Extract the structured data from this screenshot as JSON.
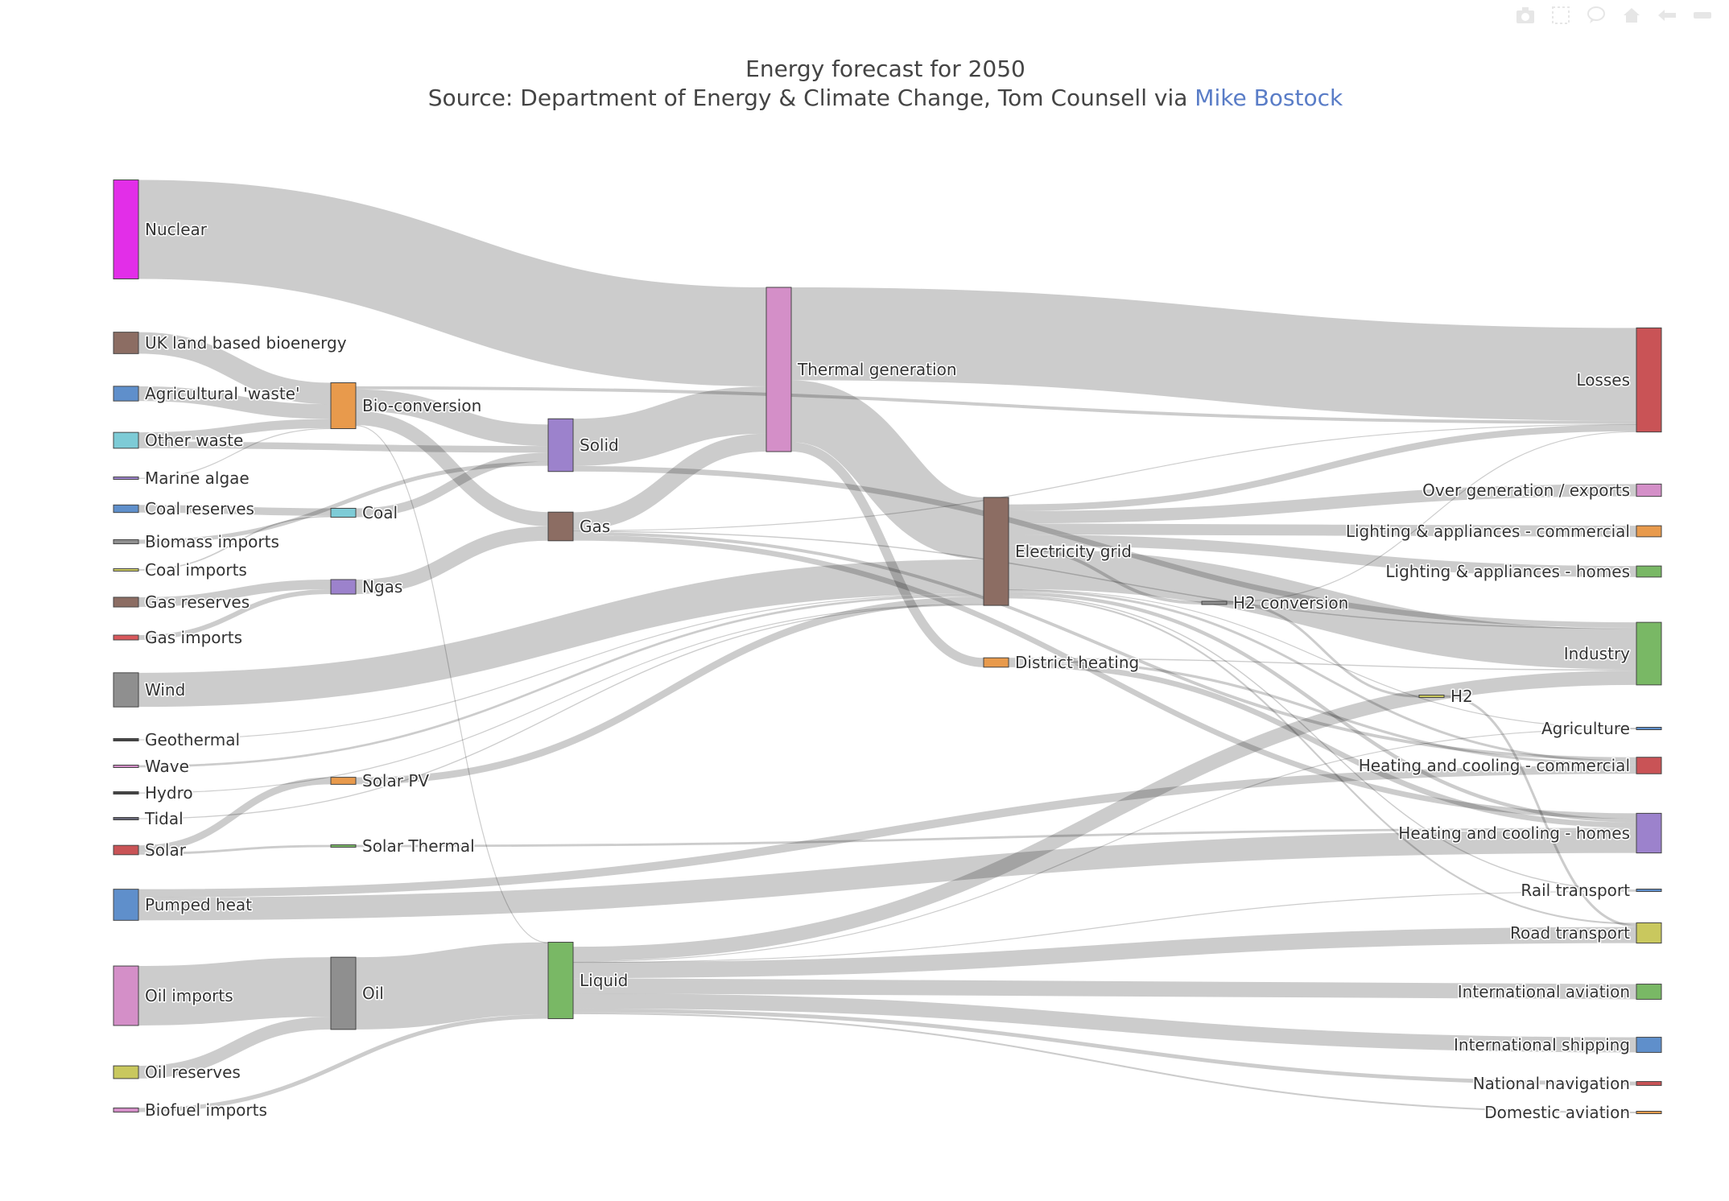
{
  "title": {
    "line1": "Energy forecast for 2050",
    "line2_prefix": "Source: Department of Energy & Climate Change, Tom Counsell via ",
    "link_text": "Mike Bostock"
  },
  "modebar": [
    "camera-icon",
    "box-select-icon",
    "comment-icon",
    "home-icon",
    "arrow-left-icon",
    "bar-icon"
  ],
  "chart_data": {
    "type": "sankey",
    "title": "Energy forecast for 2050",
    "nodes": [
      {
        "id": "nuclear",
        "label": "Nuclear",
        "color": "#e22ee8"
      },
      {
        "id": "uk_bio",
        "label": "UK land based bioenergy",
        "color": "#8c6d63"
      },
      {
        "id": "agri",
        "label": "Agricultural 'waste'",
        "color": "#5f8fcb"
      },
      {
        "id": "other_waste",
        "label": "Other waste",
        "color": "#7dcbd6"
      },
      {
        "id": "algae",
        "label": "Marine algae",
        "color": "#9c82cc"
      },
      {
        "id": "coal_res",
        "label": "Coal reserves",
        "color": "#5f8fcb"
      },
      {
        "id": "bio_imp",
        "label": "Biomass imports",
        "color": "#8f8f8f"
      },
      {
        "id": "coal_imp",
        "label": "Coal imports",
        "color": "#c9c85e"
      },
      {
        "id": "gas_res",
        "label": "Gas reserves",
        "color": "#8c6d63"
      },
      {
        "id": "gas_imp",
        "label": "Gas imports",
        "color": "#d9585c"
      },
      {
        "id": "wind",
        "label": "Wind",
        "color": "#8f8f8f"
      },
      {
        "id": "geo",
        "label": "Geothermal",
        "color": "#444444"
      },
      {
        "id": "wave",
        "label": "Wave",
        "color": "#d48fc8"
      },
      {
        "id": "hydro",
        "label": "Hydro",
        "color": "#444444"
      },
      {
        "id": "tidal",
        "label": "Tidal",
        "color": "#666677"
      },
      {
        "id": "solar",
        "label": "Solar",
        "color": "#c95356"
      },
      {
        "id": "pumped",
        "label": "Pumped heat",
        "color": "#5f8fcb"
      },
      {
        "id": "oil_imp",
        "label": "Oil imports",
        "color": "#d48fc8"
      },
      {
        "id": "oil_res",
        "label": "Oil reserves",
        "color": "#c9c85e"
      },
      {
        "id": "biofuel",
        "label": "Biofuel imports",
        "color": "#d48fc8"
      },
      {
        "id": "bioconv",
        "label": "Bio-conversion",
        "color": "#e89a4c"
      },
      {
        "id": "coal",
        "label": "Coal",
        "color": "#7dcbd6"
      },
      {
        "id": "ngas",
        "label": "Ngas",
        "color": "#9c82cc"
      },
      {
        "id": "solarpv",
        "label": "Solar PV",
        "color": "#e89a4c"
      },
      {
        "id": "solarth",
        "label": "Solar Thermal",
        "color": "#79b865"
      },
      {
        "id": "oil",
        "label": "Oil",
        "color": "#8f8f8f"
      },
      {
        "id": "solid",
        "label": "Solid",
        "color": "#9c82cc"
      },
      {
        "id": "gas",
        "label": "Gas",
        "color": "#8c6d63"
      },
      {
        "id": "liquid",
        "label": "Liquid",
        "color": "#79b865"
      },
      {
        "id": "thermal",
        "label": "Thermal generation",
        "color": "#d48fc8"
      },
      {
        "id": "grid",
        "label": "Electricity grid",
        "color": "#8c6d63"
      },
      {
        "id": "district",
        "label": "District heating",
        "color": "#e89a4c"
      },
      {
        "id": "h2conv",
        "label": "H2 conversion",
        "color": "#8f8f8f"
      },
      {
        "id": "h2",
        "label": "H2",
        "color": "#c9c85e"
      },
      {
        "id": "losses",
        "label": "Losses",
        "color": "#c95356"
      },
      {
        "id": "overgen",
        "label": "Over generation / exports",
        "color": "#d48fc8"
      },
      {
        "id": "light_com",
        "label": "Lighting & appliances - commercial",
        "color": "#e89a4c"
      },
      {
        "id": "light_home",
        "label": "Lighting & appliances - homes",
        "color": "#79b865"
      },
      {
        "id": "industry",
        "label": "Industry",
        "color": "#79b865"
      },
      {
        "id": "agriculture",
        "label": "Agriculture",
        "color": "#5f8fcb"
      },
      {
        "id": "heat_com",
        "label": "Heating and cooling - commercial",
        "color": "#c95356"
      },
      {
        "id": "heat_home",
        "label": "Heating and cooling - homes",
        "color": "#9c82cc"
      },
      {
        "id": "rail",
        "label": "Rail transport",
        "color": "#5f8fcb"
      },
      {
        "id": "road",
        "label": "Road transport",
        "color": "#c9c85e"
      },
      {
        "id": "intl_av",
        "label": "International aviation",
        "color": "#79b865"
      },
      {
        "id": "intl_ship",
        "label": "International shipping",
        "color": "#5f8fcb"
      },
      {
        "id": "nat_nav",
        "label": "National navigation",
        "color": "#c95356"
      },
      {
        "id": "dom_av",
        "label": "Domestic aviation",
        "color": "#e89a4c"
      }
    ],
    "links": [
      {
        "source": "nuclear",
        "target": "thermal",
        "value": 839
      },
      {
        "source": "uk_bio",
        "target": "bioconv",
        "value": 182
      },
      {
        "source": "agri",
        "target": "bioconv",
        "value": 124.7
      },
      {
        "source": "other_waste",
        "target": "bioconv",
        "value": 77.8
      },
      {
        "source": "other_waste",
        "target": "solid",
        "value": 56.6
      },
      {
        "source": "algae",
        "target": "bioconv",
        "value": 4.4
      },
      {
        "source": "coal_res",
        "target": "coal",
        "value": 63.97
      },
      {
        "source": "bio_imp",
        "target": "solid",
        "value": 35
      },
      {
        "source": "coal_imp",
        "target": "coal",
        "value": 11.6
      },
      {
        "source": "gas_res",
        "target": "ngas",
        "value": 82.2
      },
      {
        "source": "gas_imp",
        "target": "ngas",
        "value": 40.7
      },
      {
        "source": "wind",
        "target": "grid",
        "value": 289
      },
      {
        "source": "geo",
        "target": "grid",
        "value": 7
      },
      {
        "source": "wave",
        "target": "grid",
        "value": 19
      },
      {
        "source": "hydro",
        "target": "grid",
        "value": 6
      },
      {
        "source": "tidal",
        "target": "grid",
        "value": 9
      },
      {
        "source": "solar",
        "target": "solarpv",
        "value": 59.9
      },
      {
        "source": "solar",
        "target": "solarth",
        "value": 19.3
      },
      {
        "source": "pumped",
        "target": "heat_home",
        "value": 193
      },
      {
        "source": "pumped",
        "target": "heat_com",
        "value": 70.7
      },
      {
        "source": "oil_imp",
        "target": "oil",
        "value": 504
      },
      {
        "source": "oil_res",
        "target": "oil",
        "value": 107.7
      },
      {
        "source": "biofuel",
        "target": "liquid",
        "value": 35
      },
      {
        "source": "bioconv",
        "target": "solid",
        "value": 182
      },
      {
        "source": "bioconv",
        "target": "gas",
        "value": 120
      },
      {
        "source": "bioconv",
        "target": "losses",
        "value": 26.9
      },
      {
        "source": "bioconv",
        "target": "liquid",
        "value": 0.6
      },
      {
        "source": "coal",
        "target": "solid",
        "value": 75.6
      },
      {
        "source": "ngas",
        "target": "gas",
        "value": 122.9
      },
      {
        "source": "solarpv",
        "target": "grid",
        "value": 59.9
      },
      {
        "source": "solarth",
        "target": "heat_home",
        "value": 19.3
      },
      {
        "source": "oil",
        "target": "liquid",
        "value": 611.99
      },
      {
        "source": "solid",
        "target": "thermal",
        "value": 400.1
      },
      {
        "source": "solid",
        "target": "industry",
        "value": 46.48
      },
      {
        "source": "gas",
        "target": "thermal",
        "value": 151.9
      },
      {
        "source": "gas",
        "target": "heat_home",
        "value": 46.18
      },
      {
        "source": "gas",
        "target": "heat_com",
        "value": 26.7
      },
      {
        "source": "gas",
        "target": "industry",
        "value": 10.6
      },
      {
        "source": "gas",
        "target": "losses",
        "value": 5
      },
      {
        "source": "liquid",
        "target": "industry",
        "value": 121.07
      },
      {
        "source": "liquid",
        "target": "road",
        "value": 135.8
      },
      {
        "source": "liquid",
        "target": "intl_av",
        "value": 128.7
      },
      {
        "source": "liquid",
        "target": "intl_ship",
        "value": 128.6
      },
      {
        "source": "liquid",
        "target": "nat_nav",
        "value": 33.2
      },
      {
        "source": "liquid",
        "target": "dom_av",
        "value": 14.4
      },
      {
        "source": "liquid",
        "target": "agriculture",
        "value": 7.0
      },
      {
        "source": "liquid",
        "target": "rail",
        "value": 2.0
      },
      {
        "source": "thermal",
        "target": "losses",
        "value": 787.1
      },
      {
        "source": "thermal",
        "target": "grid",
        "value": 525.5
      },
      {
        "source": "thermal",
        "target": "district",
        "value": 79.3
      },
      {
        "source": "grid",
        "target": "overgen",
        "value": 104.5
      },
      {
        "source": "grid",
        "target": "light_com",
        "value": 93.8
      },
      {
        "source": "grid",
        "target": "light_home",
        "value": 93.8
      },
      {
        "source": "grid",
        "target": "industry",
        "value": 342.2
      },
      {
        "source": "grid",
        "target": "heat_com",
        "value": 20.1
      },
      {
        "source": "grid",
        "target": "heat_home",
        "value": 30.6
      },
      {
        "source": "grid",
        "target": "h2conv",
        "value": 27.1
      },
      {
        "source": "grid",
        "target": "rail",
        "value": 10
      },
      {
        "source": "grid",
        "target": "road",
        "value": 15
      },
      {
        "source": "grid",
        "target": "agriculture",
        "value": 3
      },
      {
        "source": "grid",
        "target": "losses",
        "value": 56.7
      },
      {
        "source": "district",
        "target": "industry",
        "value": 10
      },
      {
        "source": "district",
        "target": "heat_com",
        "value": 22.5
      },
      {
        "source": "district",
        "target": "heat_home",
        "value": 46.8
      },
      {
        "source": "h2conv",
        "target": "h2",
        "value": 20.9
      },
      {
        "source": "h2conv",
        "target": "losses",
        "value": 6.2
      },
      {
        "source": "h2",
        "target": "road",
        "value": 20.9
      }
    ]
  }
}
